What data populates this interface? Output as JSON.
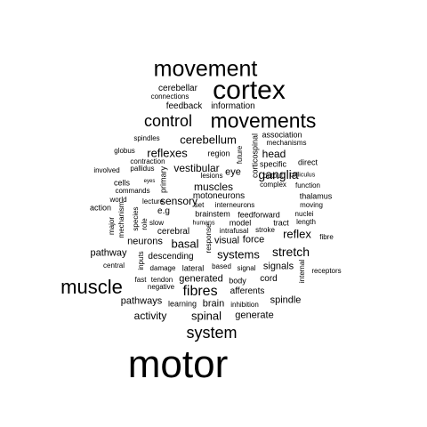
{
  "text_color": "#000000",
  "background_color": "#ffffff",
  "words": [
    "motor",
    "cortex",
    "movement",
    "movements",
    "muscle",
    "control",
    "system",
    "fibres",
    "ganglia",
    "stretch",
    "cerebellum",
    "reflexes",
    "reflex",
    "spinal",
    "basal",
    "systems",
    "vestibular",
    "muscles",
    "sensory",
    "activity",
    "generate",
    "generated",
    "brain",
    "pathways",
    "signals",
    "spindle",
    "pathway",
    "descending",
    "visual",
    "force",
    "neurons",
    "cerebral",
    "brainstem",
    "afferents",
    "cord",
    "head",
    "eye",
    "cerebellar",
    "feedback",
    "information",
    "connections",
    "association",
    "mechanisms",
    "region",
    "corticospinal",
    "future",
    "primary",
    "motoneurons",
    "interneurons",
    "set",
    "e.g",
    "feedforward",
    "thalamus",
    "moving",
    "nuclei",
    "length",
    "direct",
    "specific",
    "complex",
    "output",
    "colliculus",
    "function",
    "spindles",
    "globus",
    "pallidus",
    "contraction",
    "involved",
    "lesions",
    "cells",
    "eyes",
    "commands",
    "lecture",
    "world",
    "action",
    "species",
    "role",
    "major",
    "mechanism",
    "slow",
    "humans",
    "model",
    "tract",
    "stroke",
    "intrafusal",
    "fibre",
    "response",
    "inputs",
    "internal",
    "receptors",
    "central",
    "damage",
    "lateral",
    "based",
    "signal",
    "body",
    "tendon",
    "fast",
    "negative",
    "inhibition",
    "learning"
  ]
}
